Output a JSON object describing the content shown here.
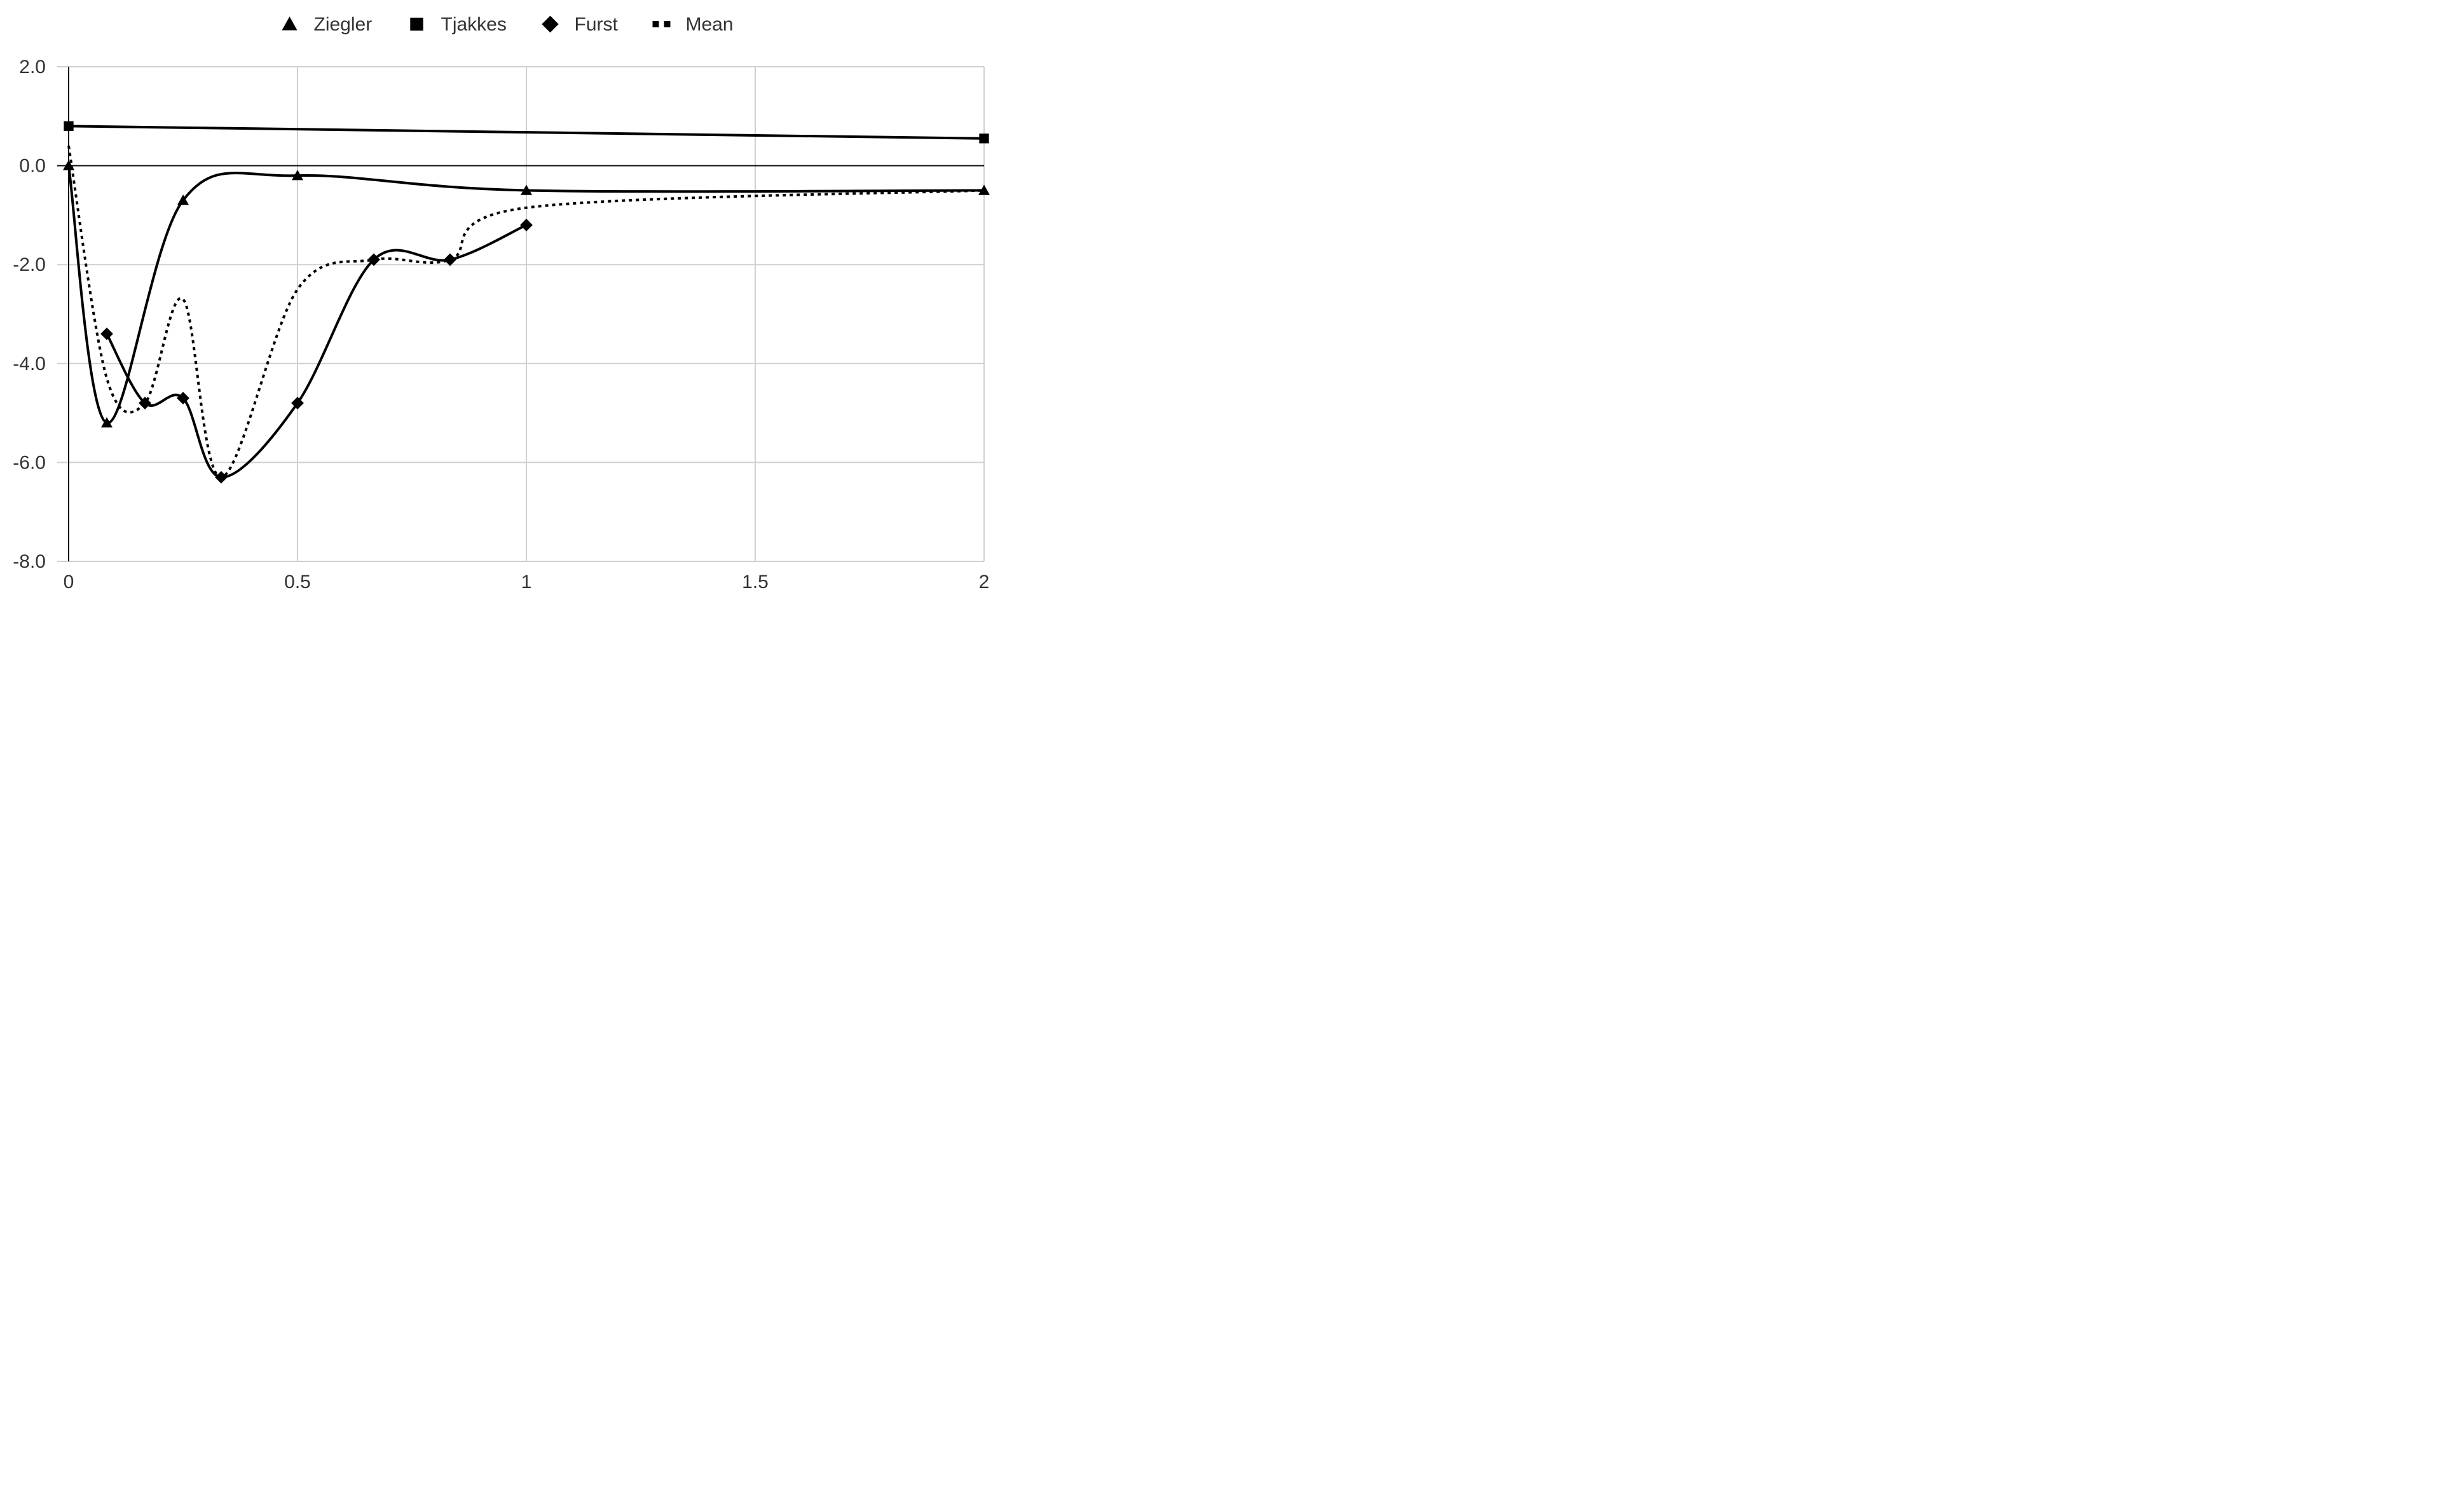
{
  "chart_data": {
    "type": "scatter",
    "title": "",
    "xlabel": "",
    "ylabel": "",
    "xlim": [
      0,
      2
    ],
    "ylim": [
      -8,
      2
    ],
    "x_ticks": [
      0,
      0.5,
      1,
      1.5,
      2
    ],
    "x_tick_labels": [
      "0",
      "0.5",
      "1",
      "1.5",
      "2"
    ],
    "y_ticks": [
      2,
      0,
      -2,
      -4,
      -6,
      -8
    ],
    "y_tick_labels": [
      "2.0",
      "0.0",
      "-2.0",
      "-4.0",
      "-6.0",
      "-8.0"
    ],
    "grid": true,
    "legend_position": "top-center",
    "series": [
      {
        "name": "Ziegler",
        "marker": "triangle",
        "line_style": "solid",
        "color": "#000000",
        "x": [
          0,
          0.0833,
          0.25,
          0.5,
          1,
          2
        ],
        "y": [
          0,
          -5.2,
          -0.7,
          -0.2,
          -0.5,
          -0.5
        ]
      },
      {
        "name": "Tjakkes",
        "marker": "square",
        "line_style": "solid",
        "color": "#000000",
        "x": [
          0,
          2
        ],
        "y": [
          0.8,
          0.55
        ]
      },
      {
        "name": "Furst",
        "marker": "diamond",
        "line_style": "solid",
        "color": "#000000",
        "x": [
          0.0833,
          0.1667,
          0.25,
          0.3333,
          0.5,
          0.6667,
          0.8333,
          1
        ],
        "y": [
          -3.4,
          -4.8,
          -4.7,
          -6.3,
          -4.8,
          -1.9,
          -1.9,
          -1.2
        ]
      },
      {
        "name": "Mean",
        "marker": "none",
        "line_style": "dotted",
        "color": "#000000",
        "x": [
          0,
          0.0833,
          0.1667,
          0.25,
          0.3333,
          0.5,
          0.6667,
          0.8333,
          1,
          2
        ],
        "y": [
          0.4,
          -4.3,
          -4.8,
          -2.7,
          -6.3,
          -2.5,
          -1.9,
          -1.9,
          -0.85,
          -0.5
        ]
      }
    ]
  }
}
